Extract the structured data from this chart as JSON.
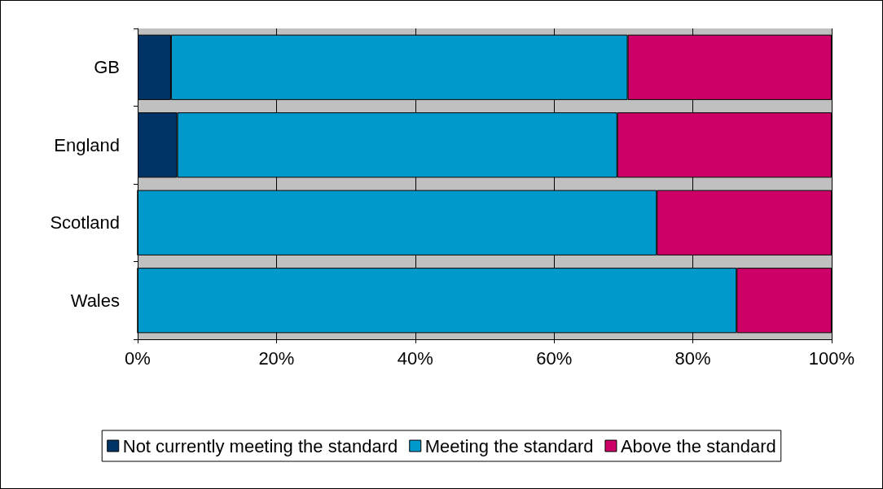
{
  "chart_data": {
    "type": "bar",
    "orientation": "horizontal",
    "stacked": true,
    "categories": [
      "GB",
      "England",
      "Scotland",
      "Wales"
    ],
    "series": [
      {
        "name": "Not currently meeting the standard",
        "color": "#003366",
        "values": [
          4.8,
          5.7,
          0,
          0
        ]
      },
      {
        "name": "Meeting the standard",
        "color": "#0099cc",
        "values": [
          65.8,
          63.4,
          74.8,
          86.3
        ]
      },
      {
        "name": "Above the standard",
        "color": "#cc0066",
        "values": [
          29.4,
          30.9,
          25.2,
          13.7
        ]
      }
    ],
    "xlim": [
      0,
      100
    ],
    "xticks": [
      {
        "value": 0,
        "label": "0%"
      },
      {
        "value": 20,
        "label": "20%"
      },
      {
        "value": 40,
        "label": "40%"
      },
      {
        "value": 60,
        "label": "60%"
      },
      {
        "value": 80,
        "label": "80%"
      },
      {
        "value": 100,
        "label": "100%"
      }
    ],
    "grid": "x",
    "legend": "bottom"
  }
}
